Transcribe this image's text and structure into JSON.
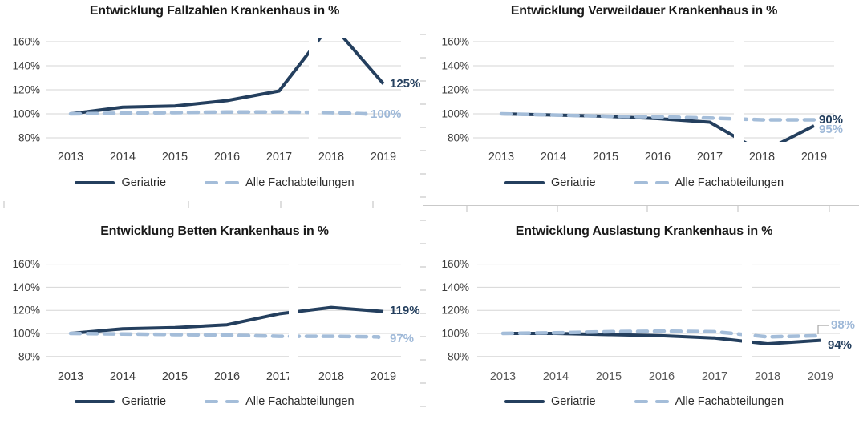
{
  "page": {
    "background": "#ffffff"
  },
  "colors": {
    "geriatrie": "#243f5e",
    "alle_fachabteilungen": "#a4bdd9",
    "gridline": "#d6d6d6",
    "axis_label": "#3d3d3d",
    "axis_label_bottom_right": "#595959",
    "title": "#1a1a1a",
    "value_label_geriatrie": "#243f5e",
    "value_label_alle": "#9fb9d8",
    "callout_line": "#a6a6a6",
    "artifact_gray": "#c9c9c9"
  },
  "chart_data": [
    {
      "type": "line",
      "title": "Entwicklung Fallzahlen Krankenhaus in %",
      "x": [
        "2013",
        "2014",
        "2015",
        "2016",
        "2017",
        "2018",
        "2019"
      ],
      "y_ticks": [
        "160%",
        "140%",
        "120%",
        "100%",
        "80%"
      ],
      "ylim": [
        80,
        160
      ],
      "grid": true,
      "legend_position": "bottom",
      "series": [
        {
          "name": "Geriatrie",
          "style": "solid",
          "color": "#243f5e",
          "values": [
            100,
            105.5,
            106.5,
            111,
            119,
            175,
            125
          ],
          "end_label": "125%",
          "note": "2018 value above 160% axis limit, line clipped at plot top"
        },
        {
          "name": "Alle Fachabteilungen",
          "style": "dashed",
          "color": "#a4bdd9",
          "values": [
            100,
            100.5,
            101,
            101.5,
            101.5,
            101,
            100
          ],
          "end_label": "100%"
        }
      ]
    },
    {
      "type": "line",
      "title": "Entwicklung Verweildauer Krankenhaus in %",
      "x": [
        "2013",
        "2014",
        "2015",
        "2016",
        "2017",
        "2018",
        "2019"
      ],
      "y_ticks": [
        "160%",
        "140%",
        "120%",
        "100%",
        "80%"
      ],
      "ylim": [
        80,
        160
      ],
      "grid": true,
      "legend_position": "bottom",
      "series": [
        {
          "name": "Geriatrie",
          "style": "solid",
          "color": "#243f5e",
          "values": [
            100,
            99,
            98,
            96,
            93,
            68,
            90
          ],
          "end_label": "90%",
          "note": "2018 value below 80% axis limit, line clipped at plot bottom"
        },
        {
          "name": "Alle Fachabteilungen",
          "style": "dashed",
          "color": "#a4bdd9",
          "values": [
            100,
            99,
            98,
            97.5,
            96.5,
            95,
            95
          ],
          "end_label": "95%"
        }
      ]
    },
    {
      "type": "line",
      "title": "Entwicklung Betten Krankenhaus in %",
      "x": [
        "2013",
        "2014",
        "2015",
        "2016",
        "2017",
        "2018",
        "2019"
      ],
      "y_ticks": [
        "160%",
        "140%",
        "120%",
        "100%",
        "80%"
      ],
      "ylim": [
        80,
        160
      ],
      "grid": true,
      "legend_position": "bottom",
      "series": [
        {
          "name": "Geriatrie",
          "style": "solid",
          "color": "#243f5e",
          "values": [
            100,
            104,
            105,
            107.5,
            117,
            122.5,
            119
          ],
          "end_label": "119%"
        },
        {
          "name": "Alle Fachabteilungen",
          "style": "dashed",
          "color": "#a4bdd9",
          "values": [
            100,
            99.5,
            99,
            98.5,
            97.5,
            97.5,
            97
          ],
          "end_label": "97%"
        }
      ]
    },
    {
      "type": "line",
      "title": "Entwicklung Auslastung Krankenhaus in %",
      "x": [
        "2013",
        "2014",
        "2015",
        "2016",
        "2017",
        "2018",
        "2019"
      ],
      "y_ticks": [
        "160%",
        "140%",
        "120%",
        "100%",
        "80%"
      ],
      "ylim": [
        80,
        160
      ],
      "grid": true,
      "legend_position": "bottom",
      "series": [
        {
          "name": "Geriatrie",
          "style": "solid",
          "color": "#243f5e",
          "values": [
            100,
            100,
            99,
            98,
            96,
            91,
            94
          ],
          "end_label": "94%"
        },
        {
          "name": "Alle Fachabteilungen",
          "style": "dashed",
          "color": "#a4bdd9",
          "values": [
            100,
            100.5,
            101.5,
            102,
            101.5,
            97,
            98
          ],
          "end_label": "98%",
          "note": "end label connected by small leader line"
        }
      ]
    }
  ]
}
